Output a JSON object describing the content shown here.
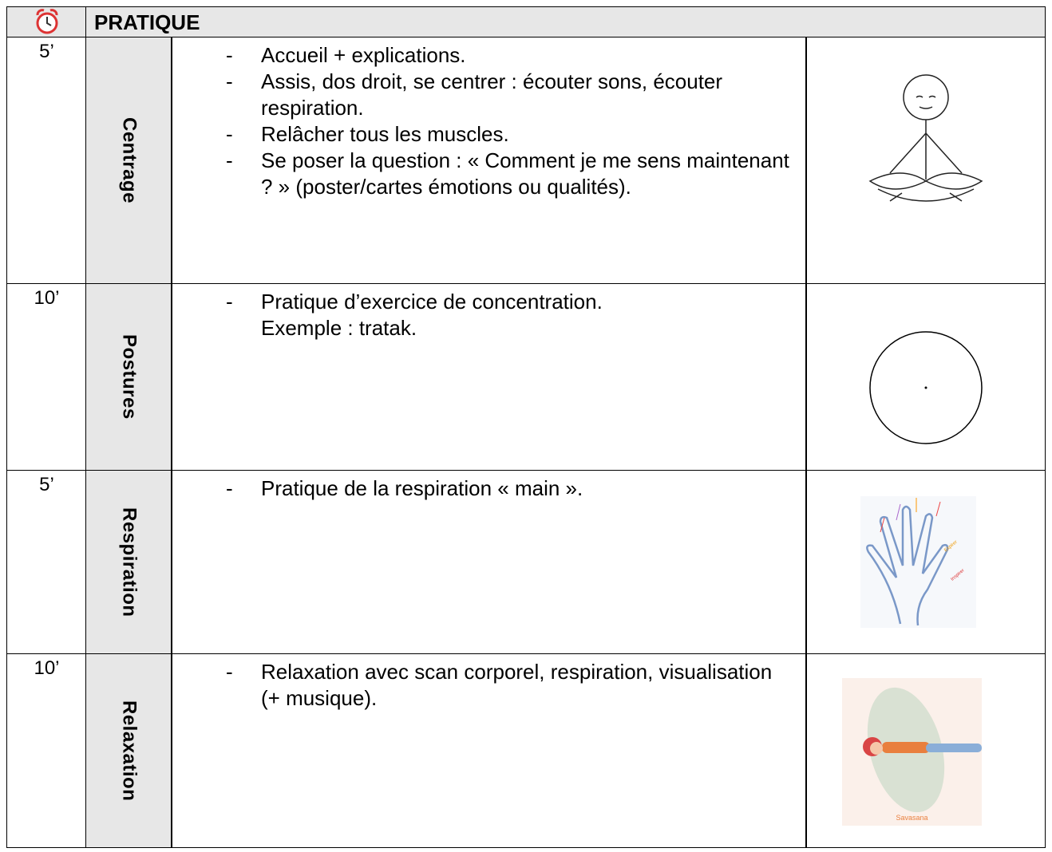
{
  "header": {
    "title": "PRATIQUE"
  },
  "rows": [
    {
      "time": "5’",
      "label": "Centrage",
      "items": [
        "Accueil + explications.",
        "Assis, dos droit, se centrer : écouter sons, écouter respiration.",
        "Relâcher tous les muscles.",
        "Se poser la question : « Comment je me sens maintenant ? » (poster/cartes émotions ou qualités)."
      ]
    },
    {
      "time": "10’",
      "label": "Postures",
      "items": [
        "Pratique d’exercice de concentration."
      ],
      "note": "Exemple : tratak."
    },
    {
      "time": "5’",
      "label": "Respiration",
      "items": [
        "Pratique de la respiration « main »."
      ],
      "image_texts": [
        "Expirer",
        "Inspirer"
      ]
    },
    {
      "time": "10’",
      "label": "Relaxation",
      "items": [
        "Relaxation avec scan corporel, respiration, visualisation (+ musique)."
      ],
      "image_caption": "Savasana"
    }
  ]
}
